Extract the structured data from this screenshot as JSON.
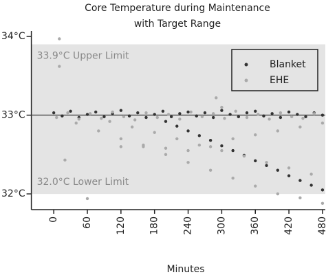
{
  "chart_data": {
    "type": "scatter",
    "title": "Core Temperature during Maintenance",
    "subtitle": "with Target Range",
    "x_label": "Minutes",
    "xlim": [
      -40,
      485
    ],
    "ylim": [
      31.8,
      34.07
    ],
    "xticks": [
      0,
      60,
      120,
      180,
      240,
      300,
      360,
      420,
      480
    ],
    "yticks": [
      {
        "value": 32,
        "label": "32°C"
      },
      {
        "value": 33,
        "label": "33°C"
      },
      {
        "value": 34,
        "label": "34°C"
      }
    ],
    "reference_line": 33,
    "band": {
      "from": 32.0,
      "to": 33.9,
      "upper_label": "33.9°C Upper Limit",
      "lower_label": "32.0°C Lower Limit",
      "color": "#e4e4e4"
    },
    "legend": "upper right",
    "series": [
      {
        "name": "Blanket",
        "color": "#333333",
        "x": [
          0,
          15,
          30,
          45,
          60,
          75,
          90,
          105,
          120,
          135,
          150,
          165,
          180,
          195,
          210,
          225,
          240,
          255,
          270,
          285,
          300,
          315,
          330,
          345,
          360,
          375,
          390,
          405,
          420,
          435,
          450,
          465,
          480,
          200,
          220,
          240,
          260,
          280,
          300,
          320,
          340,
          360,
          380,
          400,
          420,
          440,
          460,
          480
        ],
        "values": [
          33.03,
          32.99,
          33.05,
          32.97,
          33.01,
          33.04,
          32.98,
          33.02,
          33.06,
          32.99,
          33.03,
          32.97,
          33.01,
          33.05,
          32.98,
          33.02,
          33.04,
          32.99,
          33.03,
          32.97,
          33.06,
          33.01,
          32.98,
          33.03,
          33.05,
          32.99,
          33.02,
          32.97,
          33.04,
          33.01,
          32.98,
          33.03,
          33.0,
          32.92,
          32.86,
          32.8,
          32.74,
          32.68,
          32.61,
          32.55,
          32.49,
          32.42,
          32.36,
          32.3,
          32.23,
          32.17,
          32.11,
          32.05
        ]
      },
      {
        "name": "EHE",
        "color": "#aaaaaa",
        "x": [
          10,
          10,
          20,
          60,
          290,
          300,
          40,
          80,
          120,
          160,
          200,
          240,
          280,
          320,
          360,
          400,
          440,
          480,
          100,
          140,
          180,
          220,
          260,
          300,
          340,
          380,
          420,
          460,
          120,
          160,
          200,
          240,
          280,
          320,
          360,
          400,
          440,
          480,
          5,
          25,
          45,
          65,
          85,
          105,
          125,
          145,
          165,
          185,
          205,
          225,
          245,
          265,
          285,
          305,
          325,
          345,
          365,
          385,
          405,
          425,
          445,
          465
        ],
        "values": [
          33.97,
          33.62,
          32.43,
          31.94,
          33.22,
          33.1,
          32.9,
          32.8,
          32.7,
          32.6,
          32.5,
          32.4,
          32.3,
          32.2,
          32.1,
          32.0,
          31.95,
          31.88,
          32.92,
          32.85,
          32.78,
          32.7,
          32.62,
          32.55,
          32.48,
          32.4,
          32.33,
          32.25,
          32.6,
          32.62,
          32.58,
          32.55,
          32.6,
          32.7,
          32.75,
          32.8,
          32.85,
          32.9,
          32.97,
          33.03,
          32.95,
          33.02,
          32.96,
          33.04,
          32.98,
          32.94,
          33.03,
          32.97,
          33.01,
          32.95,
          33.04,
          32.98,
          33.02,
          32.96,
          33.05,
          32.97,
          33.01,
          32.95,
          33.03,
          32.98,
          32.96,
          33.02
        ]
      }
    ]
  }
}
